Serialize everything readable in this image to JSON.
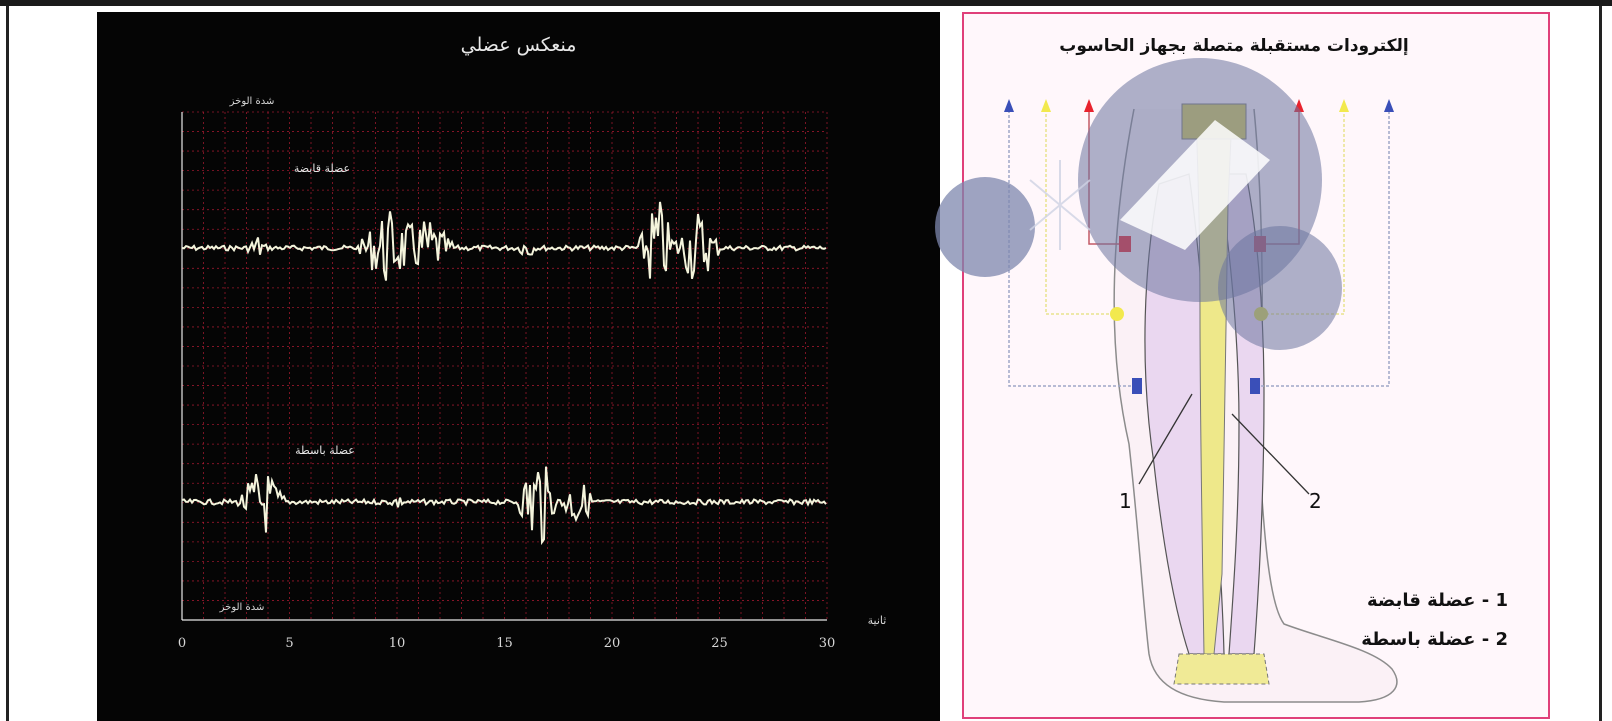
{
  "emg": {
    "title": "منعكس عضلي",
    "top_trace_label": "عضلة قابضة",
    "bottom_trace_label": "عضلة باسطة",
    "x_axis_label": "ثانية",
    "x_ticks": [
      "0",
      "5",
      "10",
      "15",
      "20",
      "25",
      "30"
    ],
    "y_axis_top_label": "شدة الوخز",
    "y_axis_bottom_label": "شدة الوخز",
    "background_color": "#050505",
    "grid_color": "#c81e3a",
    "trace_color": "#f4f4dc"
  },
  "leg_diagram": {
    "title": "إلكترودات مستقبلة متصلة بجهاز الحاسوب",
    "label_1": "1",
    "label_2": "2",
    "legend": [
      "1 - عضلة قابضة",
      "2 - عضلة باسطة"
    ],
    "border_color": "#e0407a",
    "electrode_colors": {
      "red": "#e8232e",
      "yellow": "#f2e94e",
      "blue": "#3a4fb8"
    }
  }
}
